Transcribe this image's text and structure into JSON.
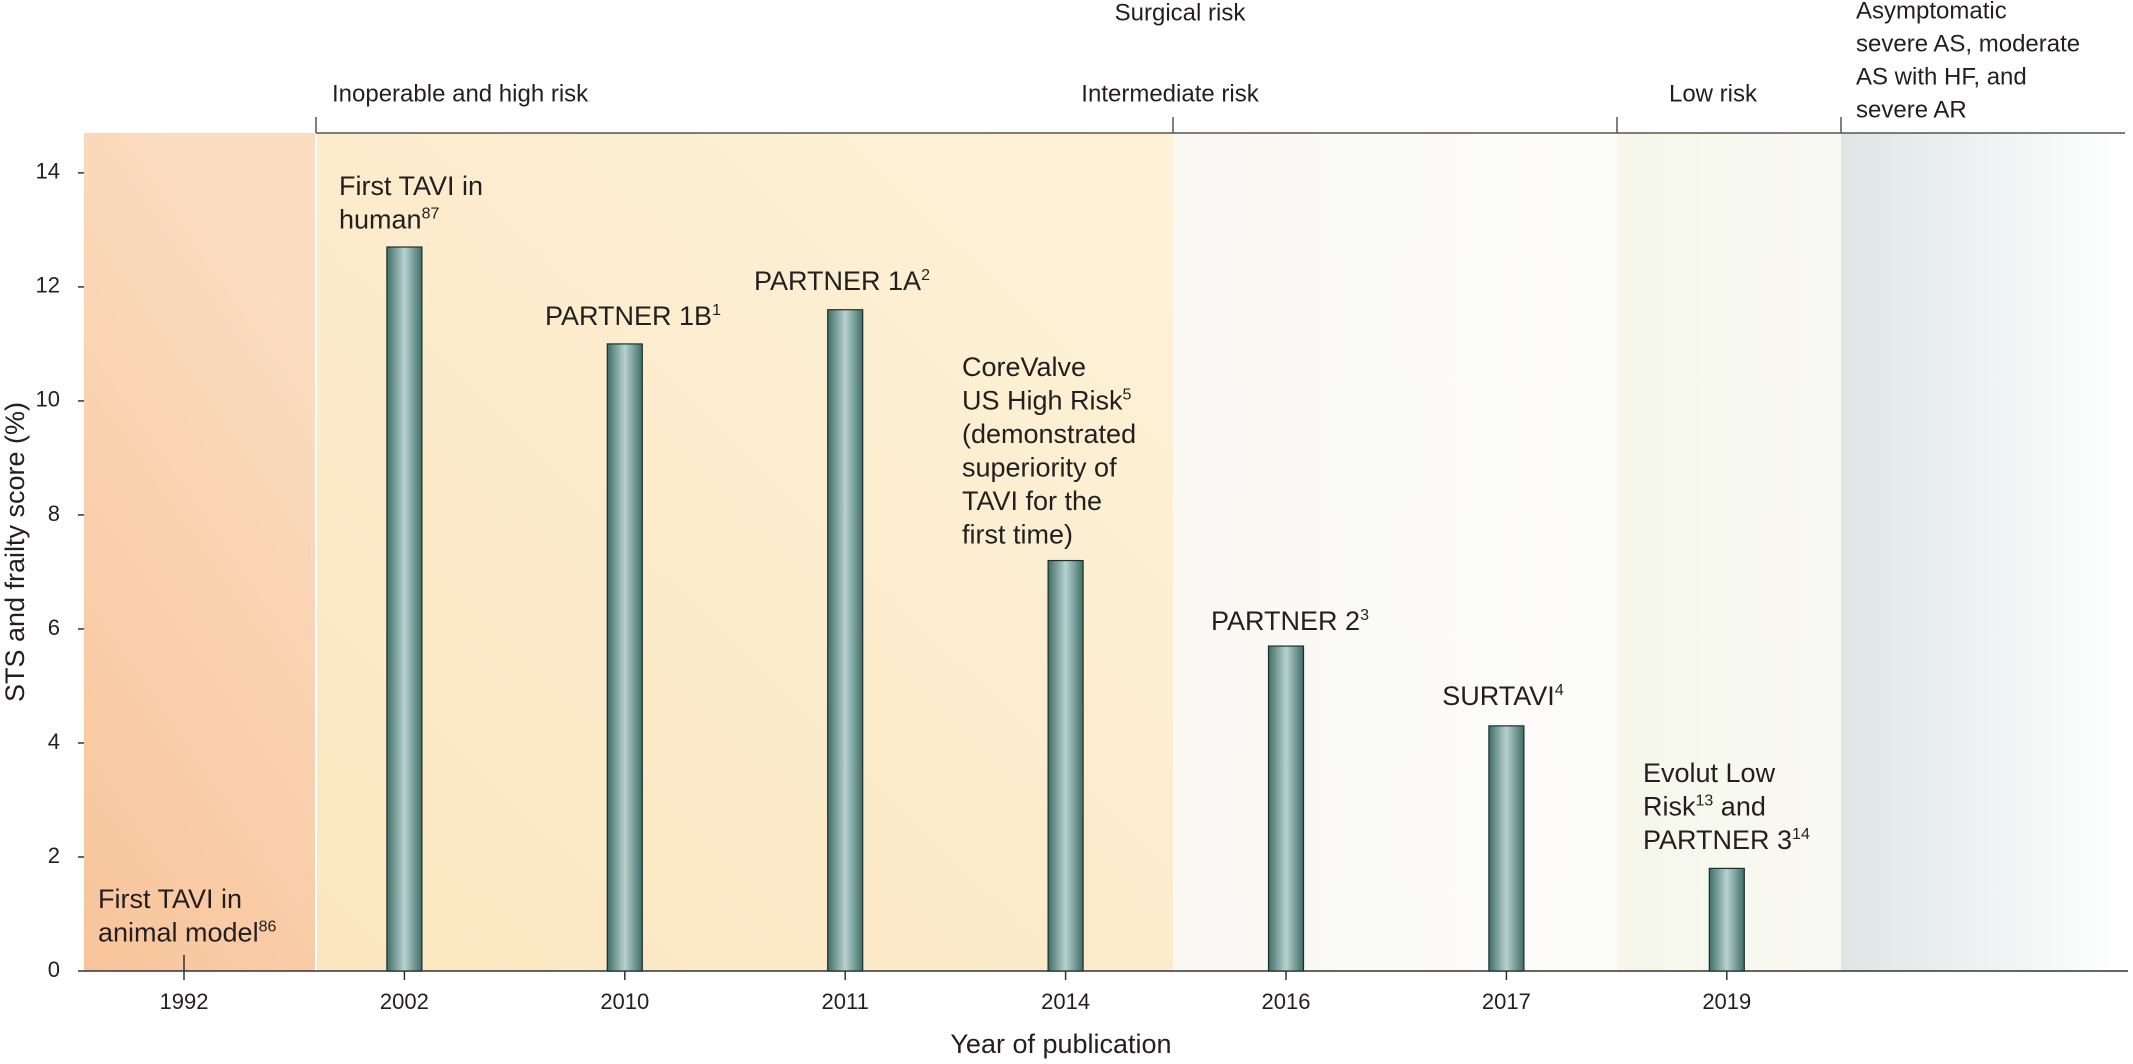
{
  "chart_data": {
    "type": "bar",
    "title": "Surgical risk",
    "x_label": "Year of publication",
    "y_label": "STS and frailty score (%)",
    "categories": [
      "1992",
      "2002",
      "2010",
      "2011",
      "2014",
      "2016",
      "2017",
      "2019"
    ],
    "values": [
      null,
      12.7,
      11.0,
      11.6,
      7.2,
      5.7,
      4.3,
      1.8
    ],
    "color": "#3f6e68",
    "highlight_color": "#b8d2ce",
    "ylim": [
      0,
      14.7
    ],
    "yticks": [
      0,
      2,
      4,
      6,
      8,
      10,
      12,
      14
    ],
    "risk_groups": [
      {
        "lines": [
          "Inoperable and high risk"
        ]
      },
      {
        "lines": [
          "Intermediate risk"
        ]
      },
      {
        "lines": [
          "Low risk"
        ]
      },
      {
        "lines": [
          "Asymptomatic",
          "severe AS, moderate",
          "AS with HF, and",
          "severe AR"
        ]
      }
    ],
    "annotations": [
      [
        [
          {
            "text": "First TAVI in"
          }
        ],
        [
          {
            "text": "animal model"
          },
          {
            "sup": "86"
          }
        ]
      ],
      [
        [
          {
            "text": "First TAVI in"
          }
        ],
        [
          {
            "text": "human"
          },
          {
            "sup": "87"
          }
        ]
      ],
      [
        [
          {
            "text": "PARTNER 1B"
          },
          {
            "sup": "1"
          }
        ]
      ],
      [
        [
          {
            "text": "PARTNER 1A"
          },
          {
            "sup": "2"
          }
        ]
      ],
      [
        [
          {
            "text": "CoreValve"
          }
        ],
        [
          {
            "text": "US High Risk"
          },
          {
            "sup": "5"
          }
        ],
        [
          {
            "text": "(demonstrated"
          }
        ],
        [
          {
            "text": "superiority of"
          }
        ],
        [
          {
            "text": "TAVI for the"
          }
        ],
        [
          {
            "text": "first time)"
          }
        ]
      ],
      [
        [
          {
            "text": "PARTNER 2"
          },
          {
            "sup": "3"
          }
        ]
      ],
      [
        [
          {
            "text": "SURTAVI"
          },
          {
            "sup": "4"
          }
        ]
      ],
      [
        [
          {
            "text": "Evolut Low"
          }
        ],
        [
          {
            "text": "Risk"
          },
          {
            "sup": "13"
          },
          {
            "text": " and"
          }
        ],
        [
          {
            "text": "PARTNER 3"
          },
          {
            "sup": "14"
          }
        ]
      ]
    ]
  }
}
